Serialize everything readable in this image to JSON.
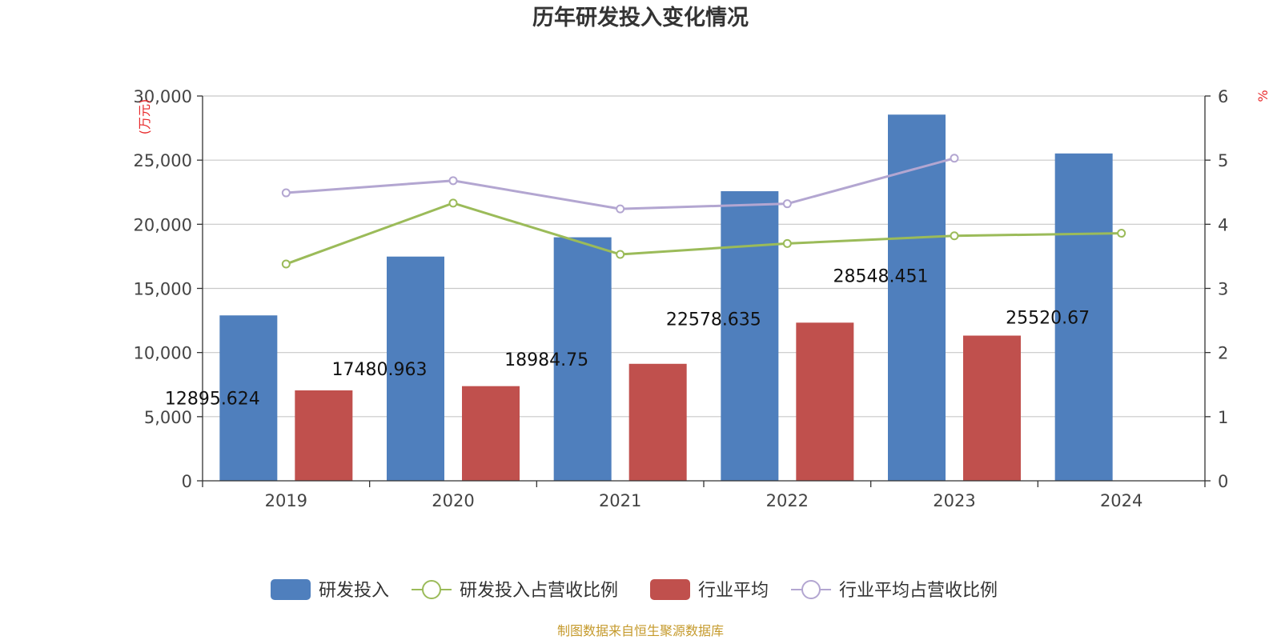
{
  "chart_data": {
    "type": "bar",
    "title": "历年研发投入变化情况",
    "categories": [
      "2019",
      "2020",
      "2021",
      "2022",
      "2023",
      "2024"
    ],
    "y_left": {
      "unit_label": "(万元)",
      "ylim": [
        0,
        30000
      ],
      "ticks": [
        "0",
        "5,000",
        "10,000",
        "15,000",
        "20,000",
        "25,000",
        "30,000"
      ]
    },
    "y_right": {
      "unit_label": "%",
      "ylim": [
        0,
        6
      ],
      "ticks": [
        "0",
        "1",
        "2",
        "3",
        "4",
        "5",
        "6"
      ]
    },
    "series": [
      {
        "name": "研发投入",
        "kind": "bar",
        "axis": "left",
        "color": "#4f7fbd",
        "values": [
          12895.624,
          17480.963,
          18984.75,
          22578.635,
          28548.451,
          25520.67
        ],
        "labels": [
          "12895.624",
          "17480.963",
          "18984.75",
          "22578.635",
          "28548.451",
          "25520.67"
        ]
      },
      {
        "name": "研发投入占营收比例",
        "kind": "line",
        "axis": "right",
        "color": "#9bbb59",
        "values": [
          3.38,
          4.33,
          3.53,
          3.7,
          3.82,
          3.86
        ]
      },
      {
        "name": "行业平均",
        "kind": "bar",
        "axis": "left",
        "color": "#c0504d",
        "values": [
          7050,
          7380,
          9120,
          12330,
          11320,
          null
        ]
      },
      {
        "name": "行业平均占营收比例",
        "kind": "line",
        "axis": "right",
        "color": "#b3a6d1",
        "values": [
          4.49,
          4.68,
          4.24,
          4.32,
          5.03,
          null
        ]
      }
    ],
    "grid": true,
    "legend_position": "bottom"
  },
  "source": "制图数据来自恒生聚源数据库"
}
